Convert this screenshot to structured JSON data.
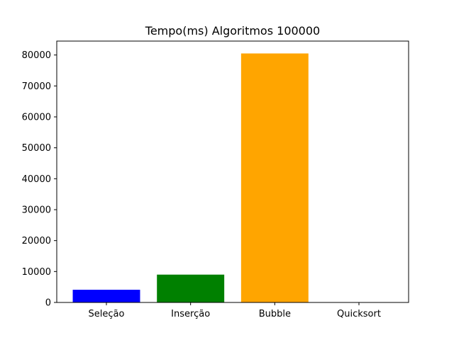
{
  "chart_data": {
    "type": "bar",
    "title": "Tempo(ms) Algoritmos 100000",
    "xlabel": "",
    "ylabel": "",
    "categories": [
      "Seleção",
      "Inserção",
      "Bubble",
      "Quicksort"
    ],
    "values": [
      4100,
      9000,
      80500,
      30
    ],
    "colors": [
      "#0000ff",
      "#008000",
      "#ffa500",
      "#ff0000"
    ],
    "ylim": [
      0,
      84500
    ],
    "yticks": [
      0,
      10000,
      20000,
      30000,
      40000,
      50000,
      60000,
      70000,
      80000
    ],
    "ytick_labels": [
      "0",
      "10000",
      "20000",
      "30000",
      "40000",
      "50000",
      "60000",
      "70000",
      "80000"
    ],
    "grid": false,
    "legend": "none"
  }
}
